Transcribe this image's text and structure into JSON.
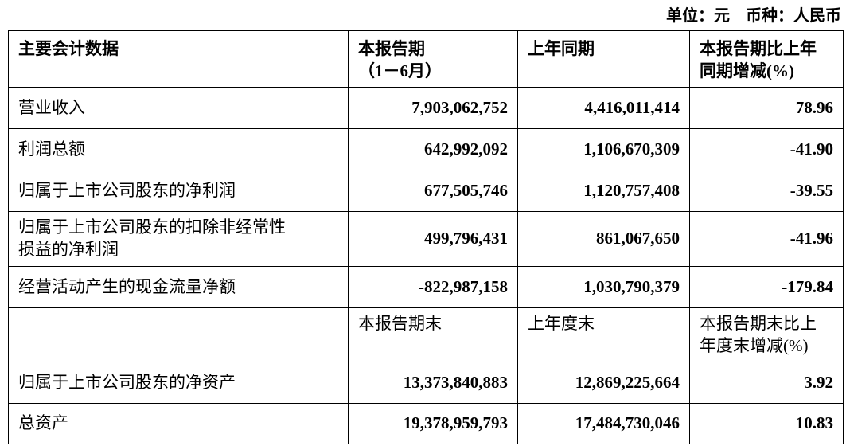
{
  "unit_line": "单位：元　币种：人民币",
  "table": {
    "header": {
      "metric": "主要会计数据",
      "current": "本报告期\n（1－6月）",
      "prior": "上年同期",
      "change": "本报告期比上年\n同期增减(%)"
    },
    "rows": [
      {
        "label": "营业收入",
        "current": "7,903,062,752",
        "prior": "4,416,011,414",
        "change": "78.96"
      },
      {
        "label": "利润总额",
        "current": "642,992,092",
        "prior": "1,106,670,309",
        "change": "-41.90"
      },
      {
        "label": "归属于上市公司股东的净利润",
        "current": "677,505,746",
        "prior": "1,120,757,408",
        "change": "-39.55"
      },
      {
        "label": "归属于上市公司股东的扣除非经常性\n损益的净利润",
        "current": "499,796,431",
        "prior": "861,067,650",
        "change": "-41.96"
      },
      {
        "label": "经营活动产生的现金流量净额",
        "current": "-822,987,158",
        "prior": "1,030,790,379",
        "change": "-179.84"
      }
    ],
    "sub_header": {
      "label": "",
      "current": "本报告期末",
      "prior": "上年度末",
      "change": "本报告期末比上\n年度末增减(%)"
    },
    "rows2": [
      {
        "label": "归属于上市公司股东的净资产",
        "current": "13,373,840,883",
        "prior": "12,869,225,664",
        "change": "3.92"
      },
      {
        "label": "总资产",
        "current": "19,378,959,793",
        "prior": "17,484,730,046",
        "change": "10.83"
      }
    ]
  }
}
